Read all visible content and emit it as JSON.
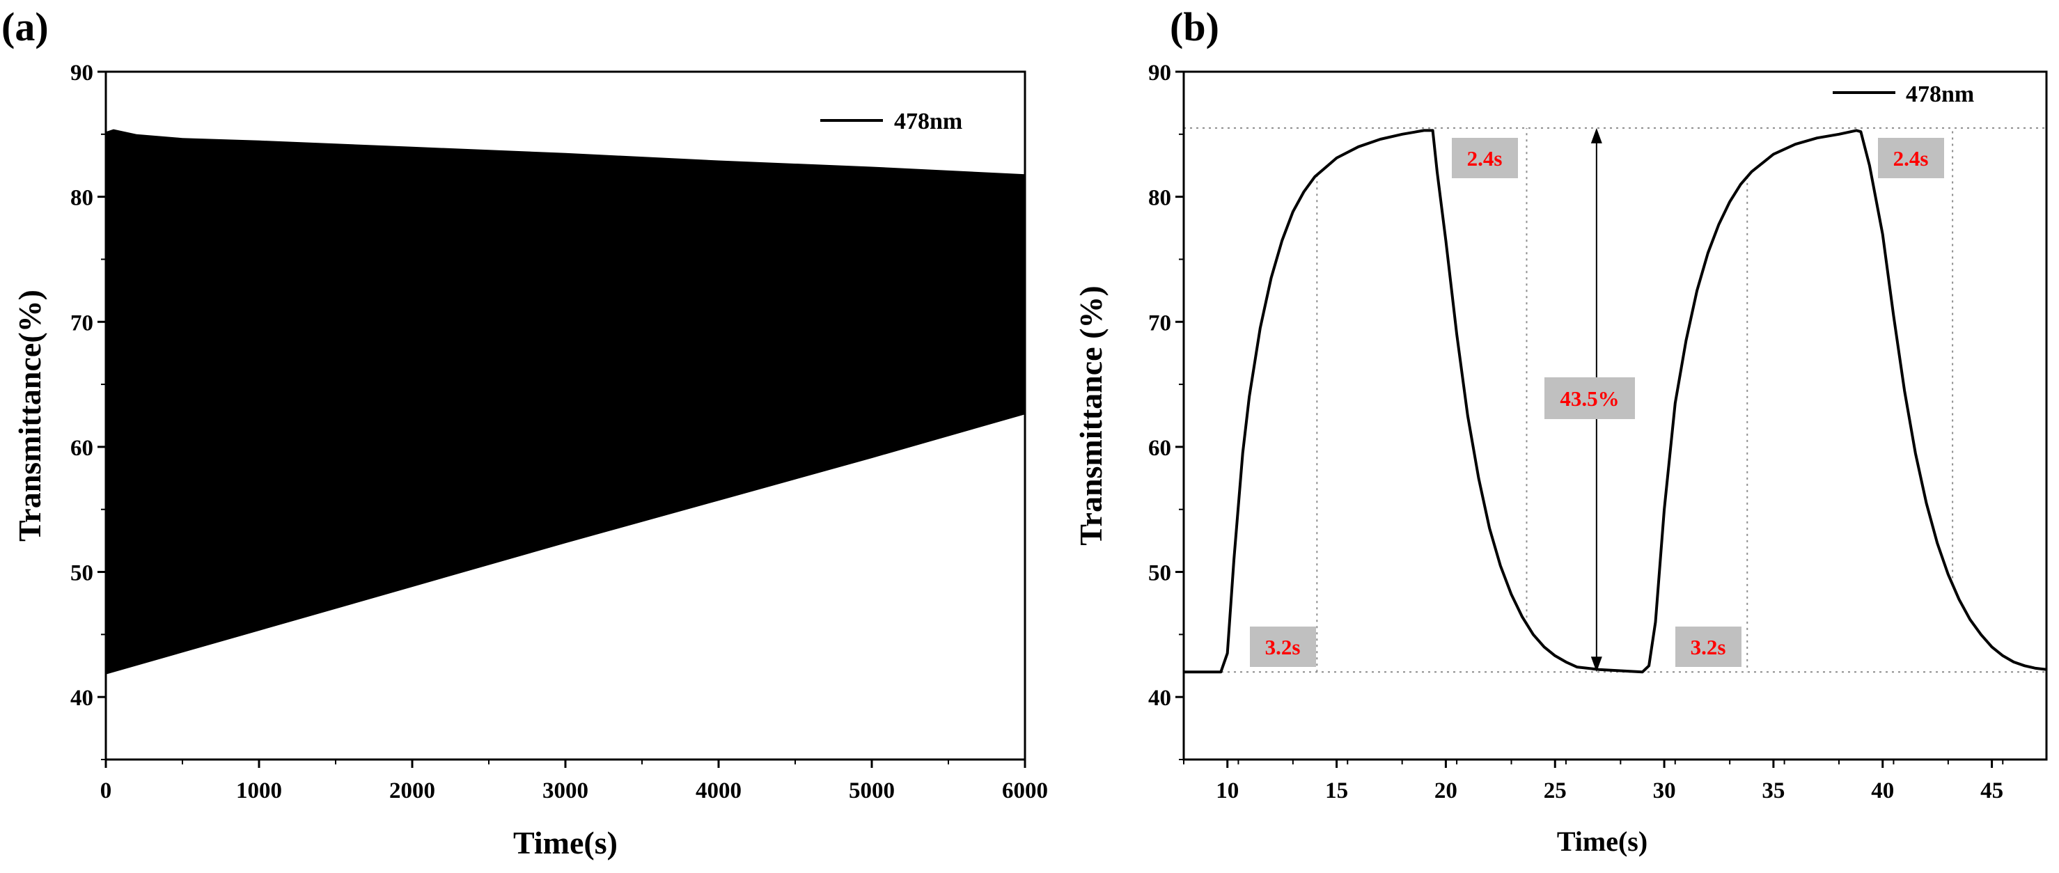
{
  "chart_data": [
    {
      "panel_label": "(a)",
      "type": "line",
      "xlabel": "Time(s)",
      "ylabel": "Transmittance(%)",
      "xlim": [
        0,
        6000
      ],
      "ylim": [
        35,
        90
      ],
      "xticks": [
        0,
        1000,
        2000,
        3000,
        4000,
        5000,
        6000
      ],
      "yticks": [
        40,
        50,
        60,
        70,
        80,
        90
      ],
      "tick_labels_x": [
        "0",
        "1000",
        "2000",
        "3000",
        "4000",
        "5000",
        "6000"
      ],
      "tick_labels_y": [
        "40",
        "50",
        "60",
        "70",
        "80",
        "90"
      ],
      "legend": "478nm",
      "series": [
        {
          "name": "upper envelope",
          "x": [
            0,
            50,
            200,
            500,
            1000,
            2000,
            3000,
            4000,
            5000,
            6000
          ],
          "values": [
            85.2,
            85.4,
            85.0,
            84.7,
            84.5,
            84.0,
            83.5,
            82.9,
            82.4,
            81.8
          ]
        },
        {
          "name": "lower envelope",
          "x": [
            0,
            1000,
            2000,
            3000,
            4000,
            5000,
            6000
          ],
          "values": [
            41.8,
            45.3,
            48.8,
            52.3,
            55.7,
            59.1,
            62.6
          ]
        }
      ]
    },
    {
      "panel_label": "(b)",
      "type": "line",
      "xlabel": "Time(s)",
      "ylabel": "Transmittance (%)",
      "xlim": [
        8,
        47.5
      ],
      "ylim": [
        35,
        90
      ],
      "xticks": [
        10,
        15,
        20,
        25,
        30,
        35,
        40,
        45
      ],
      "yticks": [
        40,
        50,
        60,
        70,
        80,
        90
      ],
      "tick_labels_x": [
        "10",
        "15",
        "20",
        "25",
        "30",
        "35",
        "40",
        "45"
      ],
      "tick_labels_y": [
        "40",
        "50",
        "60",
        "70",
        "80",
        "90"
      ],
      "legend": "478nm",
      "reference_levels": {
        "high": 85.5,
        "low": 42.0
      },
      "annotations": {
        "contrast": "43.5%",
        "coloring_time": "3.2s",
        "bleaching_time": "2.4s"
      },
      "series": [
        {
          "name": "478nm",
          "x": [
            8,
            9,
            9.7,
            10.0,
            10.3,
            10.7,
            11.0,
            11.5,
            12.0,
            12.5,
            13.0,
            13.5,
            14.0,
            15.0,
            16.0,
            17.0,
            18.0,
            19.0,
            19.4,
            19.6,
            20.0,
            20.5,
            21.0,
            21.5,
            22.0,
            22.5,
            23.0,
            23.5,
            24.0,
            24.5,
            25.0,
            25.5,
            26.0,
            27.0,
            28.0,
            29.0,
            29.3,
            29.6,
            30.0,
            30.5,
            31.0,
            31.5,
            32.0,
            32.5,
            33.0,
            33.5,
            34.0,
            35.0,
            36.0,
            37.0,
            38.0,
            38.8,
            39.0,
            39.4,
            40.0,
            40.5,
            41.0,
            41.5,
            42.0,
            42.5,
            43.0,
            43.5,
            44.0,
            44.5,
            45.0,
            45.5,
            46.0,
            46.5,
            47.0,
            47.5
          ],
          "values": [
            42.0,
            42.0,
            42.0,
            43.5,
            51.0,
            59.5,
            64.0,
            69.5,
            73.5,
            76.5,
            78.8,
            80.4,
            81.6,
            83.1,
            84.0,
            84.6,
            85.0,
            85.3,
            85.3,
            82.0,
            76.5,
            69.0,
            62.5,
            57.5,
            53.5,
            50.5,
            48.2,
            46.4,
            45.0,
            44.0,
            43.3,
            42.8,
            42.4,
            42.2,
            42.1,
            42.0,
            42.5,
            46.0,
            55.0,
            63.5,
            68.5,
            72.5,
            75.5,
            77.8,
            79.6,
            81.0,
            82.0,
            83.4,
            84.2,
            84.7,
            85.0,
            85.3,
            85.2,
            82.5,
            77.0,
            70.5,
            64.5,
            59.5,
            55.5,
            52.3,
            49.8,
            47.8,
            46.2,
            45.0,
            44.0,
            43.3,
            42.8,
            42.5,
            42.3,
            42.2
          ]
        }
      ]
    }
  ]
}
